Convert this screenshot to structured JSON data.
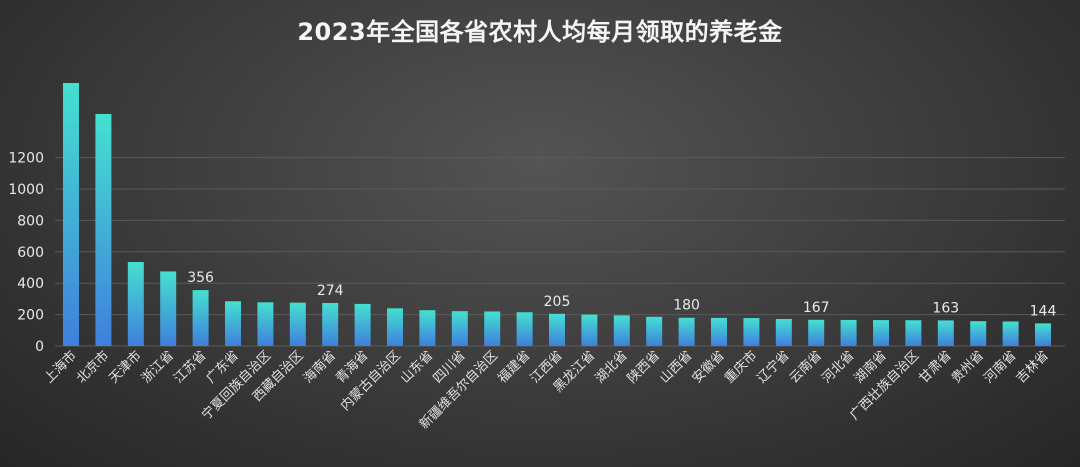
{
  "chart_data": {
    "type": "bar",
    "title": "2023年全国各省农村人均每月领取的养老金",
    "xlabel": "",
    "ylabel": "",
    "ylim": [
      0,
      1650
    ],
    "yticks": [
      0,
      200,
      400,
      600,
      800,
      1000,
      1200
    ],
    "grid": true,
    "categories": [
      "上海市",
      "北京市",
      "天津市",
      "浙江省",
      "江苏省",
      "广东省",
      "宁夏回族自治区",
      "西藏自治区",
      "海南省",
      "青海省",
      "内蒙古自治区",
      "山东省",
      "四川省",
      "新疆维吾尔自治区",
      "福建省",
      "江西省",
      "黑龙江省",
      "湖北省",
      "陕西省",
      "山西省",
      "安徽省",
      "重庆市",
      "辽宁省",
      "云南省",
      "河北省",
      "湖南省",
      "广西壮族自治区",
      "甘肃省",
      "贵州省",
      "河南省",
      "吉林省"
    ],
    "values": [
      1675,
      1478,
      535,
      475,
      356,
      285,
      278,
      276,
      274,
      268,
      240,
      228,
      222,
      220,
      215,
      205,
      200,
      195,
      186,
      180,
      179,
      178,
      172,
      167,
      166,
      165,
      164,
      163,
      158,
      156,
      144
    ],
    "data_labels": {
      "4": "356",
      "8": "274",
      "15": "205",
      "19": "180",
      "23": "167",
      "27": "163",
      "30": "144"
    },
    "colors": {
      "bar_top": "#45e0d0",
      "bar_bottom": "#3f7fdc"
    }
  }
}
